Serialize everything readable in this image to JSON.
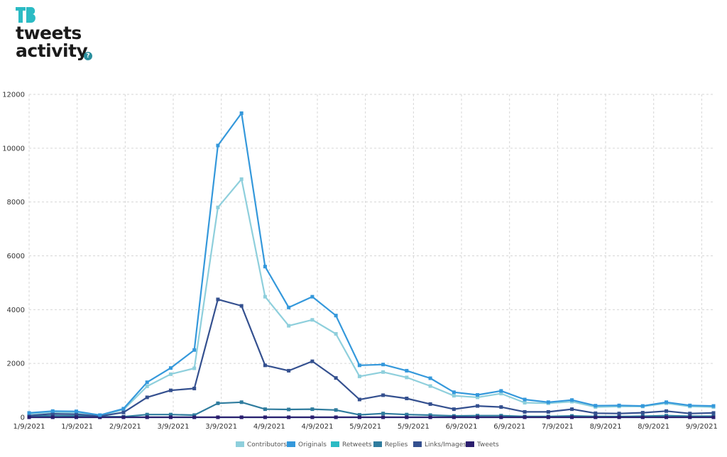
{
  "header": {
    "logo_text": "TB",
    "title_line1": "tweets",
    "title_line2": "activity",
    "help_icon": "?"
  },
  "chart_data": {
    "type": "line",
    "y_ticks": [
      "0",
      "2000",
      "4000",
      "6000",
      "8000",
      "10000",
      "12000"
    ],
    "ylim": [
      0,
      12000
    ],
    "x_tick_labels": [
      "1/9/2021",
      "1/9/2021",
      "2/9/2021",
      "3/9/2021",
      "3/9/2021",
      "4/9/2021",
      "4/9/2021",
      "5/9/2021",
      "5/9/2021",
      "6/9/2021",
      "6/9/2021",
      "7/9/2021",
      "8/9/2021",
      "8/9/2021",
      "9/9/2021"
    ],
    "grid": true,
    "legend_position": "bottom",
    "series": [
      {
        "name": "Contributors",
        "color": "#8ecfdc",
        "values": [
          120,
          190,
          170,
          60,
          280,
          1150,
          1600,
          1820,
          7800,
          8850,
          4480,
          3400,
          3620,
          3100,
          1520,
          1680,
          1480,
          1160,
          800,
          740,
          880,
          540,
          520,
          580,
          380,
          400,
          400,
          520,
          400,
          380
        ]
      },
      {
        "name": "Originals",
        "color": "#3498db",
        "values": [
          160,
          230,
          220,
          80,
          320,
          1300,
          1830,
          2500,
          10100,
          11300,
          5600,
          4080,
          4480,
          3780,
          1930,
          1960,
          1730,
          1450,
          930,
          830,
          980,
          660,
          560,
          640,
          430,
          440,
          420,
          560,
          440,
          420
        ]
      },
      {
        "name": "Retweets",
        "color": "#2bbbc4",
        "values": [
          0,
          0,
          0,
          0,
          0,
          0,
          0,
          0,
          0,
          0,
          0,
          0,
          0,
          0,
          0,
          0,
          0,
          0,
          0,
          0,
          0,
          0,
          0,
          0,
          0,
          0,
          0,
          0,
          0,
          0
        ]
      },
      {
        "name": "Replies",
        "color": "#2f7c9e",
        "values": [
          30,
          60,
          50,
          20,
          20,
          100,
          100,
          80,
          520,
          560,
          300,
          290,
          300,
          270,
          90,
          140,
          100,
          80,
          50,
          60,
          60,
          30,
          30,
          50,
          30,
          30,
          40,
          60,
          40,
          40
        ]
      },
      {
        "name": "Links/Images",
        "color": "#34508f",
        "values": [
          60,
          130,
          110,
          40,
          180,
          740,
          1000,
          1070,
          4380,
          4140,
          1930,
          1730,
          2080,
          1460,
          660,
          820,
          700,
          490,
          300,
          420,
          380,
          200,
          200,
          300,
          150,
          140,
          170,
          230,
          140,
          160
        ]
      },
      {
        "name": "Tweets",
        "color": "#2b1e6e",
        "values": [
          0,
          0,
          0,
          0,
          0,
          0,
          0,
          0,
          0,
          0,
          0,
          0,
          0,
          0,
          0,
          0,
          0,
          0,
          0,
          0,
          0,
          0,
          0,
          0,
          0,
          0,
          0,
          0,
          0,
          0
        ]
      }
    ]
  }
}
